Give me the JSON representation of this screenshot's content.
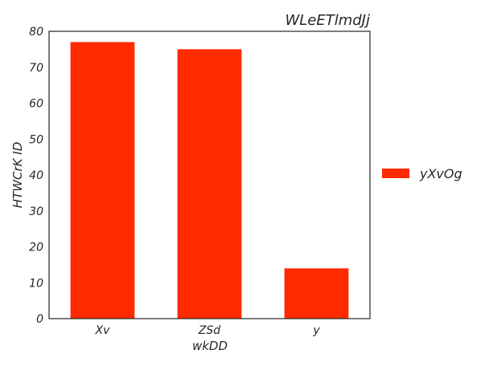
{
  "chart_data": {
    "type": "bar",
    "title": "WLeETlmdJj",
    "xlabel": "wkDD",
    "ylabel": "HTWCrK ID",
    "categories": [
      "Xv",
      "ZSd",
      "y"
    ],
    "series": [
      {
        "name": "yXvOg",
        "values": [
          77,
          75,
          14
        ],
        "color": "#ff2a00"
      }
    ],
    "ylim": [
      0,
      80
    ],
    "yticks": [
      0,
      10,
      20,
      30,
      40,
      50,
      60,
      70,
      80
    ],
    "grid": false,
    "legend_position": "right"
  }
}
